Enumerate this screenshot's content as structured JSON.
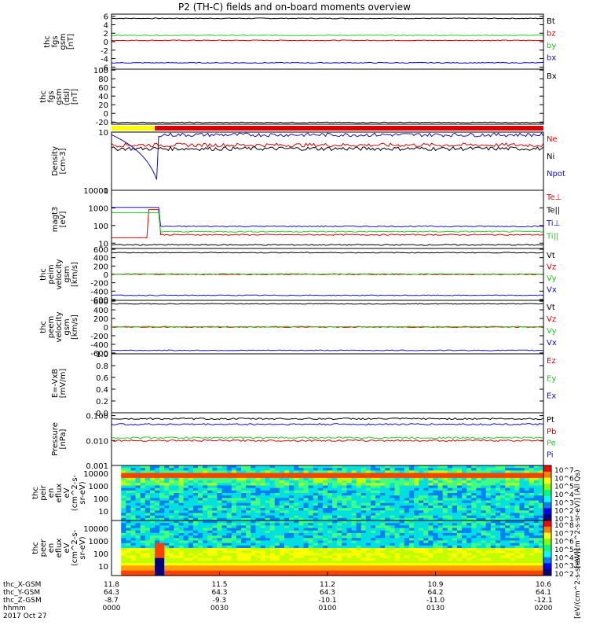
{
  "title": "P2 (TH-C) fields and on-board moments overview",
  "date_label": "2017 Oct 27",
  "colors": {
    "black": "#000000",
    "red": "#dd0000",
    "green": "#22cc22",
    "blue": "#1010c8",
    "yellow": "#ffff00"
  },
  "colorbar": {
    "label_top": "[eV/(cm^2-s-sr-eV)] (All Qs)",
    "label_bottom": "[eV/(cm^2-s-sr-eV)]",
    "ticks_top": [
      "10^7",
      "10^6",
      "10^5",
      "10^4",
      "10^3",
      "10^2",
      "10^1"
    ],
    "ticks_bottom": [
      "10^8",
      "10^7",
      "10^6",
      "10^5",
      "10^4",
      "10^3",
      "10^2"
    ]
  },
  "chart_data": [
    {
      "type": "line",
      "id": "fgs",
      "ylabel": [
        "thc",
        "fgs",
        "gsm",
        "[nT]"
      ],
      "yticks": [
        "6",
        "4",
        "2",
        "0",
        "-2",
        "-4",
        "-6"
      ],
      "ylim": [
        -6.5,
        6.5
      ],
      "series": [
        {
          "name": "Bt",
          "color": "black",
          "level": 5.5
        },
        {
          "name": "bz",
          "color": "red",
          "level": 0.3
        },
        {
          "name": "by",
          "color": "green",
          "level": 1.5
        },
        {
          "name": "bx",
          "color": "blue",
          "level": -5.0
        }
      ]
    },
    {
      "type": "line",
      "id": "fgs_dsl",
      "ylabel": [
        "thc",
        "fgs",
        "gsm",
        "(dsl)",
        "[nT]"
      ],
      "yticks": [
        "100",
        "80",
        "60",
        "40",
        "20",
        "0",
        "-20"
      ],
      "ylim": [
        -25,
        102
      ],
      "series": [
        {
          "name": "Bx",
          "color": "black",
          "level": -21
        }
      ]
    },
    {
      "type": "line",
      "id": "density",
      "log": true,
      "ylabel": [
        "Density",
        "[cm-3]"
      ],
      "yticks": [
        "10",
        "1"
      ],
      "ylim": [
        1,
        10
      ],
      "series": [
        {
          "name": "Ne",
          "color": "red",
          "level": 6.0
        },
        {
          "name": "Ni",
          "color": "black",
          "level": 5.2
        },
        {
          "name": "Npot",
          "color": "blue",
          "level": 9.0
        }
      ]
    },
    {
      "type": "line",
      "id": "temperature",
      "log": true,
      "ylabel": [
        "magt3",
        "[eV]"
      ],
      "yticks": [
        "10000",
        "1000",
        "100",
        "10"
      ],
      "ylim": [
        5,
        10000
      ],
      "series": [
        {
          "name": "Te⊥",
          "color": "red",
          "level": 30
        },
        {
          "name": "Te||",
          "color": "black",
          "level": 8
        },
        {
          "name": "Ti⊥",
          "color": "blue",
          "level": 90
        },
        {
          "name": "Ti||",
          "color": "green",
          "level": 45
        }
      ]
    },
    {
      "type": "line",
      "id": "peim",
      "ylabel": [
        "thc",
        "peim",
        "velocity",
        "gsm",
        "[km/s]"
      ],
      "yticks": [
        "600",
        "400",
        "200",
        "0",
        "-200",
        "-400",
        "-600"
      ],
      "ylim": [
        -620,
        620
      ],
      "series": [
        {
          "name": "Vt",
          "color": "black",
          "level": 520
        },
        {
          "name": "Vz",
          "color": "red",
          "level": 0
        },
        {
          "name": "Vy",
          "color": "green",
          "level": 10
        },
        {
          "name": "Vx",
          "color": "blue",
          "level": -500
        }
      ]
    },
    {
      "type": "line",
      "id": "peem",
      "ylabel": [
        "thc",
        "peem",
        "velocity",
        "gsm",
        "[km/s]"
      ],
      "yticks": [
        "600",
        "400",
        "200",
        "0",
        "-200",
        "-400",
        "-600"
      ],
      "ylim": [
        -620,
        620
      ],
      "series": [
        {
          "name": "Vt",
          "color": "black",
          "level": 540
        },
        {
          "name": "Vz",
          "color": "red",
          "level": 0
        },
        {
          "name": "Vy",
          "color": "green",
          "level": 10
        },
        {
          "name": "Vx",
          "color": "blue",
          "level": -540
        }
      ]
    },
    {
      "type": "line",
      "id": "efield",
      "ylabel": [
        "E=-VxB",
        "[mV/m]"
      ],
      "yticks": [
        "1.0",
        "0.8",
        "0.6",
        "0.4",
        "0.2",
        "0.0"
      ],
      "ylim": [
        0,
        1
      ],
      "series": [
        {
          "name": "Ez",
          "color": "red"
        },
        {
          "name": "Ey",
          "color": "green"
        },
        {
          "name": "Ex",
          "color": "blue"
        }
      ]
    },
    {
      "type": "line",
      "id": "pressure",
      "log": true,
      "ylabel": [
        "Pressure",
        "[nPa]"
      ],
      "yticks": [
        "0.100",
        "0.010",
        "0.001"
      ],
      "ylim": [
        0.001,
        0.13
      ],
      "series": [
        {
          "name": "Pt",
          "color": "black",
          "level": 0.075
        },
        {
          "name": "Pb",
          "color": "red",
          "level": 0.01
        },
        {
          "name": "Pe",
          "color": "green",
          "level": 0.013
        },
        {
          "name": "Pi",
          "color": "blue",
          "level": 0.045
        }
      ]
    },
    {
      "type": "heatmap",
      "id": "peir",
      "ylabel": [
        "thc",
        "peir",
        "en",
        "eflux",
        "eV",
        "(cm^2-s-",
        "sr-eV)"
      ],
      "yticks": [
        "10000",
        "1000",
        "100",
        "10"
      ]
    },
    {
      "type": "heatmap",
      "id": "peer",
      "ylabel": [
        "thc",
        "peer",
        "en",
        "eflux",
        "eV",
        "(cm^2-s-",
        "sr-eV)"
      ],
      "yticks": [
        "10000",
        "1000",
        "100",
        "10"
      ]
    }
  ],
  "xaxis": {
    "row_labels": [
      "thc_X-GSM",
      "thc_Y-GSM",
      "thc_Z-GSM",
      "hhmm"
    ],
    "columns": [
      [
        "11.8",
        "64.3",
        "-8.7",
        "0000"
      ],
      [
        "11.5",
        "64.3",
        "-9.3",
        "0030"
      ],
      [
        "11.2",
        "64.3",
        "-10.1",
        "0100"
      ],
      [
        "10.9",
        "64.2",
        "-11.0",
        "0130"
      ],
      [
        "10.6",
        "64.1",
        "-12.1",
        "0200"
      ]
    ]
  }
}
